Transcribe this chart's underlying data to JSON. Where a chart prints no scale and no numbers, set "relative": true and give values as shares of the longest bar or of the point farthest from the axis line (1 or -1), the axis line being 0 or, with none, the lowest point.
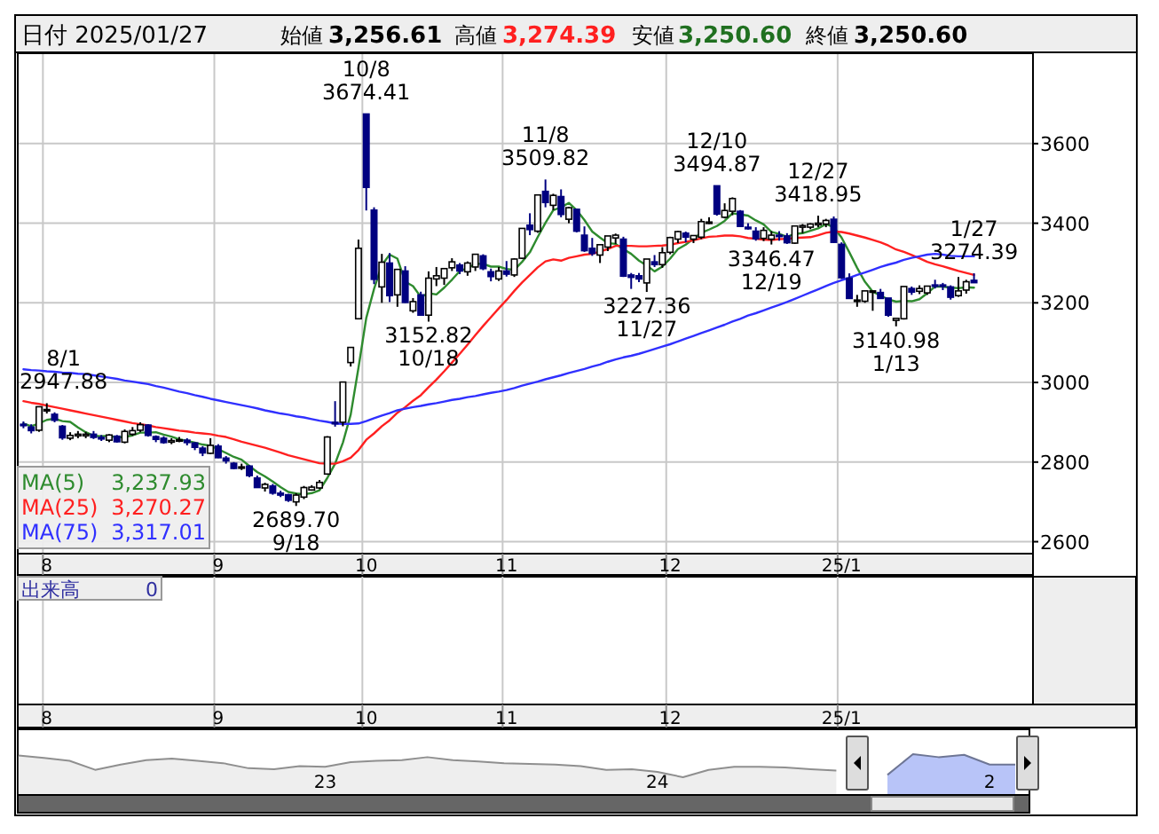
{
  "chart_data": [
    {
      "type": "candlestick",
      "title": "日付 2025/01/27",
      "annotations": [
        "始値",
        "3,256.61",
        "高値",
        "3,274.39",
        "安値",
        "3,250.60",
        "終値",
        "3,250.60",
        "3,237.93",
        "3,270.27",
        "3,317.01",
        {
          "text": "8/1\n2947.88",
          "y": 2947.88
        },
        {
          "text": "2689.70\n9/18",
          "y": 2689.7
        },
        {
          "text": "10/8\n3674.41",
          "y": 3674.41
        },
        {
          "text": "3152.82\n10/18",
          "y": 3152.82
        },
        {
          "text": "11/8\n3509.82",
          "y": 3509.82
        },
        {
          "text": "3227.36\n11/27",
          "y": 3227.36
        },
        {
          "text": "12/10\n3494.87",
          "y": 3494.87
        },
        {
          "text": "3346.47\n12/19",
          "y": 3346.47
        },
        {
          "text": "12/27\n3418.95",
          "y": 3418.95
        },
        {
          "text": "3140.98\n1/13",
          "y": 3140.98
        },
        {
          "text": "1/27\n3274.39",
          "y": 3274.39
        }
      ],
      "categories": [
        null,
        null,
        null,
        "8",
        null,
        null,
        null,
        null,
        null,
        null,
        null,
        null,
        null,
        null,
        null,
        null,
        null,
        null,
        null,
        null,
        null,
        null,
        null,
        null,
        null,
        "9",
        null,
        null,
        null,
        null,
        null,
        null,
        null,
        null,
        null,
        null,
        null,
        null,
        null,
        null,
        null,
        null,
        null,
        null,
        "10",
        null,
        null,
        null,
        null,
        null,
        null,
        null,
        null,
        null,
        null,
        null,
        null,
        null,
        null,
        null,
        null,
        null,
        "11",
        null,
        null,
        null,
        null,
        null,
        null,
        null,
        null,
        null,
        null,
        null,
        null,
        null,
        null,
        null,
        null,
        null,
        null,
        null,
        null,
        "12",
        null,
        null,
        null,
        null,
        null,
        null,
        null,
        null,
        null,
        null,
        null,
        null,
        null,
        null,
        null,
        null,
        null,
        null,
        null,
        null,
        null,
        "25/1",
        null,
        null,
        null,
        null,
        null,
        null,
        null,
        null,
        null,
        null,
        null,
        null,
        null,
        null,
        null,
        null,
        null
      ],
      "ohlc": [
        [
          2895,
          2902,
          2885,
          2892
        ],
        [
          2888,
          2895,
          2872,
          2879
        ],
        [
          2880,
          2940,
          2876,
          2939
        ],
        [
          2930,
          2947.88,
          2922,
          2932
        ],
        [
          2920,
          2925,
          2900,
          2905
        ],
        [
          2890,
          2893,
          2856,
          2861
        ],
        [
          2860,
          2875,
          2855,
          2867
        ],
        [
          2866,
          2878,
          2860,
          2870
        ],
        [
          2866,
          2876,
          2860,
          2870
        ],
        [
          2870,
          2878,
          2858,
          2862
        ],
        [
          2862,
          2868,
          2853,
          2858
        ],
        [
          2855,
          2870,
          2850,
          2868
        ],
        [
          2865,
          2868,
          2849,
          2851
        ],
        [
          2850,
          2882,
          2847,
          2877
        ],
        [
          2870,
          2888,
          2866,
          2879
        ],
        [
          2880,
          2900,
          2875,
          2894
        ],
        [
          2893,
          2895,
          2864,
          2867
        ],
        [
          2864,
          2867,
          2850,
          2857
        ],
        [
          2860,
          2865,
          2846,
          2849
        ],
        [
          2850,
          2860,
          2845,
          2854
        ],
        [
          2856,
          2863,
          2850,
          2856
        ],
        [
          2855,
          2860,
          2842,
          2849
        ],
        [
          2848,
          2850,
          2830,
          2837
        ],
        [
          2835,
          2840,
          2815,
          2823
        ],
        [
          2822,
          2860,
          2820,
          2842
        ],
        [
          2840,
          2845,
          2810,
          2811
        ],
        [
          2810,
          2815,
          2796,
          2803
        ],
        [
          2797,
          2800,
          2782,
          2784
        ],
        [
          2785,
          2796,
          2780,
          2788
        ],
        [
          2790,
          2792,
          2762,
          2766
        ],
        [
          2760,
          2766,
          2735,
          2736
        ],
        [
          2735,
          2748,
          2726,
          2744
        ],
        [
          2740,
          2745,
          2718,
          2722
        ],
        [
          2722,
          2728,
          2712,
          2717
        ],
        [
          2718,
          2720,
          2700,
          2704
        ],
        [
          2700,
          2722,
          2689.7,
          2717
        ],
        [
          2712,
          2740,
          2707,
          2736
        ],
        [
          2730,
          2742,
          2728,
          2737
        ],
        [
          2735,
          2755,
          2732,
          2749
        ],
        [
          2770,
          2865,
          2768,
          2863
        ],
        [
          2900,
          2953,
          2889,
          2896
        ],
        [
          2900,
          3001,
          2890,
          3001
        ],
        [
          3050,
          3088,
          3040,
          3088
        ],
        [
          3160,
          3359,
          3160,
          3337
        ],
        [
          3674.41,
          3674.41,
          3432,
          3490
        ],
        [
          3433,
          3440,
          3247,
          3259
        ],
        [
          3240,
          3323,
          3200,
          3302
        ],
        [
          3300,
          3325,
          3202,
          3218
        ],
        [
          3220,
          3285,
          3190,
          3284
        ],
        [
          3280,
          3292,
          3200,
          3201
        ],
        [
          3180,
          3212,
          3175,
          3203
        ],
        [
          3220,
          3228,
          3169,
          3169
        ],
        [
          3169,
          3279,
          3152.82,
          3262
        ],
        [
          3260,
          3290,
          3242,
          3268
        ],
        [
          3262,
          3286,
          3245,
          3286
        ],
        [
          3288,
          3312,
          3280,
          3303
        ],
        [
          3295,
          3300,
          3272,
          3280
        ],
        [
          3278,
          3304,
          3268,
          3300
        ],
        [
          3290,
          3322,
          3280,
          3322
        ],
        [
          3318,
          3322,
          3282,
          3286
        ],
        [
          3278,
          3286,
          3254,
          3266
        ],
        [
          3260,
          3290,
          3255,
          3280
        ],
        [
          3280,
          3305,
          3266,
          3272
        ],
        [
          3270,
          3312,
          3265,
          3310
        ],
        [
          3312,
          3388,
          3310,
          3387
        ],
        [
          3395,
          3425,
          3370,
          3384
        ],
        [
          3380,
          3471,
          3376,
          3471
        ],
        [
          3480,
          3509.82,
          3440,
          3452
        ],
        [
          3445,
          3474,
          3433,
          3470
        ],
        [
          3467,
          3485,
          3415,
          3422
        ],
        [
          3410,
          3441,
          3400,
          3439
        ],
        [
          3435,
          3437,
          3377,
          3380
        ],
        [
          3370,
          3392,
          3328,
          3331
        ],
        [
          3337,
          3363,
          3318,
          3324
        ],
        [
          3320,
          3347,
          3300,
          3346
        ],
        [
          3340,
          3368,
          3330,
          3368
        ],
        [
          3363,
          3374,
          3348,
          3370
        ],
        [
          3360,
          3366,
          3265,
          3267
        ],
        [
          3270,
          3275,
          3235,
          3264
        ],
        [
          3268,
          3275,
          3252,
          3260
        ],
        [
          3250,
          3310,
          3227.36,
          3310
        ],
        [
          3303,
          3320,
          3290,
          3296
        ],
        [
          3296,
          3340,
          3288,
          3326
        ],
        [
          3327,
          3366,
          3322,
          3364
        ],
        [
          3360,
          3381,
          3350,
          3379
        ],
        [
          3375,
          3379,
          3352,
          3365
        ],
        [
          3360,
          3370,
          3350,
          3369
        ],
        [
          3365,
          3411,
          3360,
          3404
        ],
        [
          3400,
          3415,
          3398,
          3403
        ],
        [
          3494,
          3494.87,
          3419,
          3423
        ],
        [
          3415,
          3450,
          3412,
          3432
        ],
        [
          3430,
          3465,
          3420,
          3462
        ],
        [
          3430,
          3433,
          3392,
          3392
        ],
        [
          3390,
          3400,
          3384,
          3386
        ],
        [
          3380,
          3390,
          3356,
          3361
        ],
        [
          3362,
          3390,
          3355,
          3382
        ],
        [
          3360,
          3380,
          3346.47,
          3370
        ],
        [
          3370,
          3380,
          3356,
          3368
        ],
        [
          3368,
          3375,
          3348,
          3351
        ],
        [
          3350,
          3394,
          3348,
          3393
        ],
        [
          3390,
          3398,
          3375,
          3394
        ],
        [
          3390,
          3400,
          3385,
          3398
        ],
        [
          3396,
          3418.95,
          3390,
          3400
        ],
        [
          3398,
          3411,
          3390,
          3407
        ],
        [
          3410,
          3417,
          3350,
          3352
        ],
        [
          3347,
          3352,
          3260,
          3263
        ],
        [
          3262,
          3274,
          3210,
          3211
        ],
        [
          3206,
          3220,
          3190,
          3207
        ],
        [
          3204,
          3230,
          3200,
          3230
        ],
        [
          3229,
          3231,
          3180,
          3230
        ],
        [
          3226,
          3235,
          3210,
          3211
        ],
        [
          3212,
          3212,
          3165,
          3169
        ],
        [
          3156,
          3162,
          3140.98,
          3161
        ],
        [
          3160,
          3241,
          3158,
          3241
        ],
        [
          3236,
          3241,
          3220,
          3227
        ],
        [
          3229,
          3244,
          3222,
          3236
        ],
        [
          3225,
          3242,
          3220,
          3242
        ],
        [
          3245,
          3258,
          3236,
          3244
        ],
        [
          3245,
          3250,
          3232,
          3243
        ],
        [
          3240,
          3244,
          3208,
          3214
        ],
        [
          3218,
          3265,
          3215,
          3230
        ],
        [
          3232,
          3258,
          3223,
          3253
        ],
        [
          3256.61,
          3274.39,
          3250.6,
          3250.6
        ]
      ],
      "ylim": [
        2570,
        3827
      ],
      "yticks": [
        2600,
        2800,
        3000,
        3200,
        3400,
        3600
      ],
      "grid": true,
      "legend": "bottom left",
      "series": [
        {
          "name": "MA(5)",
          "type": "line",
          "color": "#2e8b2e",
          "values": [
            2897,
            2890,
            2897,
            2906,
            2909,
            2903,
            2901,
            2887,
            2875,
            2866,
            2865,
            2866,
            2862,
            2863,
            2867,
            2874,
            2874,
            2875,
            2869,
            2864,
            2857,
            2853,
            2849,
            2844,
            2841,
            2832,
            2823,
            2813,
            2806,
            2790,
            2775,
            2764,
            2751,
            2737,
            2725,
            2721,
            2719,
            2722,
            2729,
            2760,
            2796,
            2849,
            2919,
            3037,
            3162,
            3235,
            3295,
            3321,
            3311,
            3253,
            3242,
            3215,
            3224,
            3221,
            3238,
            3258,
            3280,
            3287,
            3298,
            3298,
            3291,
            3291,
            3285,
            3283,
            3303,
            3327,
            3365,
            3401,
            3433,
            3440,
            3451,
            3433,
            3408,
            3379,
            3364,
            3350,
            3348,
            3335,
            3323,
            3306,
            3294,
            3279,
            3291,
            3311,
            3335,
            3346,
            3361,
            3376,
            3384,
            3393,
            3406,
            3425,
            3422,
            3419,
            3407,
            3397,
            3378,
            3373,
            3366,
            3373,
            3375,
            3381,
            3387,
            3398,
            3390,
            3364,
            3327,
            3288,
            3253,
            3228,
            3218,
            3209,
            3203,
            3205,
            3204,
            3209,
            3224,
            3241,
            3241,
            3238,
            3237,
            3239,
            3238
          ]
        },
        {
          "name": "MA(25)",
          "type": "line",
          "color": "#ff2020",
          "values": [
            2953,
            2949,
            2946,
            2942,
            2938,
            2934,
            2930,
            2926,
            2922,
            2918,
            2914,
            2910,
            2906,
            2902,
            2898,
            2895,
            2892,
            2888,
            2885,
            2882,
            2879,
            2877,
            2874,
            2872,
            2870,
            2866,
            2863,
            2857,
            2851,
            2846,
            2841,
            2836,
            2830,
            2824,
            2817,
            2812,
            2807,
            2802,
            2797,
            2796,
            2796,
            2802,
            2811,
            2830,
            2856,
            2872,
            2890,
            2905,
            2924,
            2938,
            2954,
            2968,
            2988,
            3007,
            3028,
            3050,
            3072,
            3095,
            3119,
            3142,
            3164,
            3186,
            3207,
            3230,
            3251,
            3270,
            3289,
            3304,
            3309,
            3306,
            3313,
            3317,
            3321,
            3323,
            3329,
            3335,
            3343,
            3343,
            3343,
            3342,
            3342,
            3343,
            3344,
            3346,
            3350,
            3353,
            3357,
            3362,
            3366,
            3367,
            3369,
            3369,
            3367,
            3363,
            3361,
            3359,
            3358,
            3360,
            3361,
            3363,
            3364,
            3365,
            3370,
            3376,
            3379,
            3378,
            3374,
            3369,
            3364,
            3358,
            3352,
            3344,
            3334,
            3328,
            3320,
            3312,
            3303,
            3297,
            3292,
            3286,
            3280,
            3275,
            3270
          ]
        },
        {
          "name": "MA(75)",
          "type": "line",
          "color": "#3030ff",
          "values": [
            3033,
            3031,
            3030,
            3028,
            3027,
            3025,
            3024,
            3022,
            3021,
            3018,
            3015,
            3012,
            3009,
            3005,
            3002,
            2999,
            2996,
            2991,
            2987,
            2982,
            2977,
            2973,
            2968,
            2964,
            2959,
            2955,
            2951,
            2947,
            2943,
            2939,
            2935,
            2930,
            2926,
            2922,
            2919,
            2915,
            2912,
            2908,
            2904,
            2901,
            2897,
            2896,
            2896,
            2897,
            2903,
            2910,
            2917,
            2923,
            2930,
            2934,
            2938,
            2941,
            2945,
            2948,
            2952,
            2956,
            2959,
            2963,
            2966,
            2970,
            2974,
            2977,
            2981,
            2986,
            2992,
            2997,
            3002,
            3008,
            3013,
            3018,
            3024,
            3029,
            3034,
            3040,
            3045,
            3052,
            3058,
            3063,
            3067,
            3072,
            3078,
            3084,
            3090,
            3096,
            3103,
            3110,
            3117,
            3124,
            3131,
            3138,
            3145,
            3153,
            3160,
            3168,
            3174,
            3181,
            3188,
            3195,
            3202,
            3210,
            3218,
            3226,
            3234,
            3242,
            3250,
            3257,
            3263,
            3270,
            3276,
            3283,
            3290,
            3296,
            3301,
            3308,
            3313,
            3317,
            3321,
            3323,
            3321,
            3318,
            3317,
            3317,
            3317
          ]
        }
      ]
    },
    {
      "type": "other",
      "annotations": [
        "出来高",
        "0"
      ],
      "categories": [
        null,
        null,
        null,
        "8",
        null,
        null,
        null,
        null,
        null,
        null,
        null,
        null,
        null,
        null,
        null,
        null,
        null,
        null,
        null,
        null,
        null,
        null,
        null,
        null,
        null,
        "9",
        null,
        null,
        null,
        null,
        null,
        null,
        null,
        null,
        null,
        null,
        null,
        null,
        null,
        null,
        null,
        null,
        null,
        null,
        "10",
        null,
        null,
        null,
        null,
        null,
        null,
        null,
        null,
        null,
        null,
        null,
        null,
        null,
        null,
        null,
        null,
        null,
        "11",
        null,
        null,
        null,
        null,
        null,
        null,
        null,
        null,
        null,
        null,
        null,
        null,
        null,
        null,
        null,
        null,
        null,
        null,
        null,
        null,
        "12",
        null,
        null,
        null,
        null,
        null,
        null,
        null,
        null,
        null,
        null,
        null,
        null,
        null,
        null,
        null,
        null,
        null,
        null,
        null,
        null,
        null,
        "25/1",
        null,
        null,
        null,
        null,
        null,
        null,
        null,
        null,
        null,
        null,
        null,
        null,
        null,
        null,
        null,
        null,
        null
      ]
    },
    {
      "type": "area",
      "relative": true,
      "categories": [
        null,
        null,
        null,
        null,
        null,
        null,
        null,
        null,
        null,
        null,
        null,
        null,
        "23",
        null,
        null,
        null,
        null,
        null,
        null,
        null,
        null,
        null,
        null,
        null,
        null,
        "24",
        null,
        null,
        null,
        null,
        null,
        null,
        null,
        null,
        null,
        null,
        null,
        null,
        "2",
        null
      ],
      "series": [
        {
          "color": "#eeeeee",
          "values": [
            0.94,
            0.84,
            0.71,
            0.32,
            0.55,
            0.74,
            0.81,
            0.71,
            0.61,
            0.39,
            0.35,
            0.48,
            0.45,
            0.65,
            0.71,
            0.74,
            0.87,
            0.74,
            0.68,
            0.61,
            0.58,
            0.55,
            0.48,
            0.32,
            0.35,
            0.23,
            0,
            0.32,
            0.45,
            0.45,
            0.42,
            0.35,
            0.29,
            null,
            null,
            null,
            null,
            null,
            null,
            null
          ]
        },
        {
          "color": "#b8c4f8",
          "values": [
            null,
            null,
            null,
            null,
            null,
            null,
            null,
            null,
            null,
            null,
            null,
            null,
            null,
            null,
            null,
            null,
            null,
            null,
            null,
            null,
            null,
            null,
            null,
            null,
            null,
            null,
            null,
            null,
            null,
            null,
            null,
            null,
            null,
            null,
            0.1,
            1,
            0.87,
            0.97,
            0.55,
            0.55
          ]
        }
      ]
    }
  ]
}
